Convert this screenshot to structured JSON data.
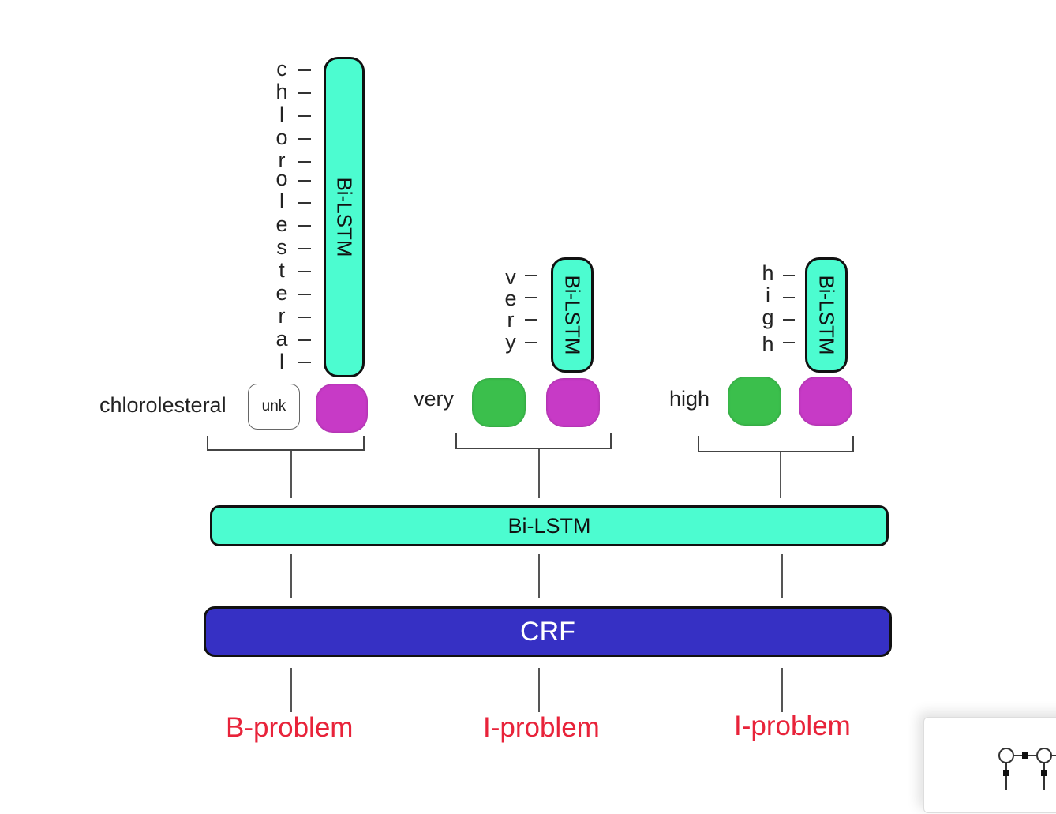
{
  "words": [
    {
      "text": "chlorolesteral",
      "chars": [
        "c",
        "h",
        "l",
        "o",
        "r",
        "o",
        "l",
        "e",
        "s",
        "t",
        "e",
        "r",
        "a",
        "l"
      ],
      "embedding": "unk"
    },
    {
      "text": "very",
      "chars": [
        "v",
        "e",
        "r",
        "y"
      ]
    },
    {
      "text": "high",
      "chars": [
        "h",
        "i",
        "g",
        "h"
      ]
    }
  ],
  "char_lstm_label": "Bi-LSTM",
  "word_lstm_label": "Bi-LSTM",
  "crf_label": "CRF",
  "output_labels": [
    "B-problem",
    "I-problem",
    "I-problem"
  ],
  "colors": {
    "lstm": "#4cfcd0",
    "crf": "#3630c4",
    "char_embedding": "#c73ac6",
    "word_embedding": "#3bbf4c",
    "label": "#e8233a"
  }
}
